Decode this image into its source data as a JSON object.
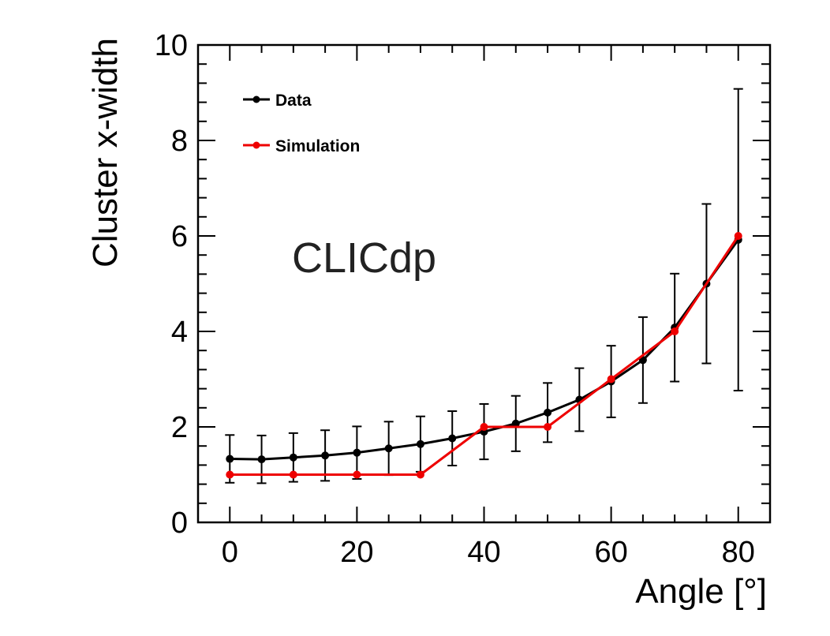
{
  "chart_data": {
    "type": "line",
    "title": "",
    "watermark": "CLICdp",
    "xlabel": "Angle [°]",
    "ylabel": "Cluster x-width",
    "xlim": [
      -5,
      85
    ],
    "ylim": [
      0,
      10
    ],
    "xticks": [
      0,
      20,
      40,
      60,
      80
    ],
    "yticks": [
      0,
      2,
      4,
      6,
      8,
      10
    ],
    "legend_position": "top-left",
    "series": [
      {
        "name": "Data",
        "color": "#000000",
        "x": [
          0,
          5,
          10,
          15,
          20,
          25,
          30,
          35,
          40,
          45,
          50,
          55,
          60,
          65,
          70,
          75,
          80
        ],
        "y": [
          1.33,
          1.32,
          1.36,
          1.4,
          1.46,
          1.55,
          1.64,
          1.76,
          1.9,
          2.07,
          2.3,
          2.57,
          2.95,
          3.4,
          4.08,
          5.0,
          5.92
        ],
        "yerr": [
          0.5,
          0.5,
          0.51,
          0.53,
          0.55,
          0.56,
          0.58,
          0.57,
          0.58,
          0.58,
          0.62,
          0.66,
          0.75,
          0.9,
          1.13,
          1.67,
          3.16
        ]
      },
      {
        "name": "Simulation",
        "color": "#ee0000",
        "x": [
          0,
          10,
          20,
          30,
          40,
          50,
          60,
          70,
          80
        ],
        "y": [
          1.0,
          1.0,
          1.0,
          1.0,
          2.0,
          2.0,
          3.0,
          4.0,
          6.0
        ]
      }
    ]
  }
}
